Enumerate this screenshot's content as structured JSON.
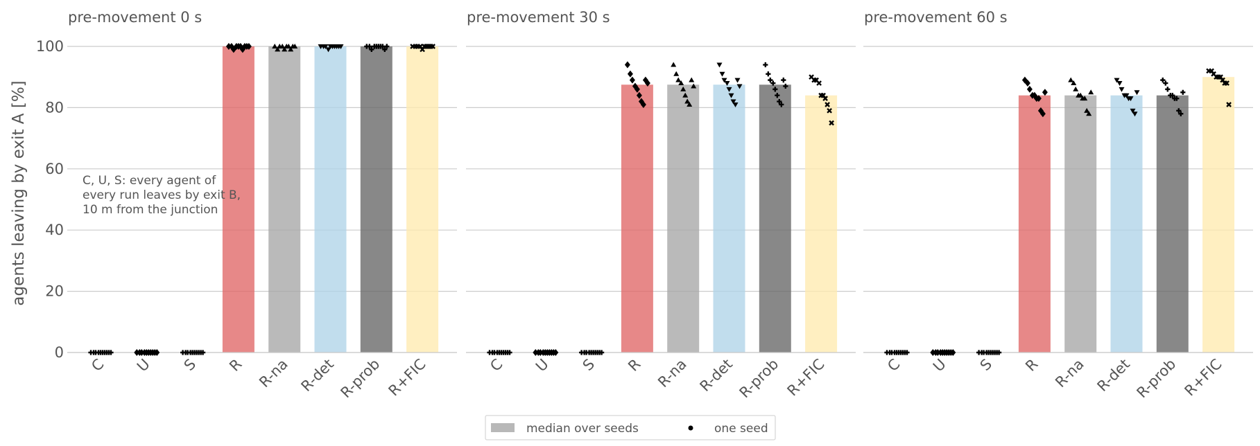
{
  "chart_data": {
    "type": "bar",
    "ylabel": "agents leaving by exit A [%]",
    "ylim": [
      0,
      100
    ],
    "yticks": [
      0,
      20,
      40,
      60,
      80,
      100
    ],
    "grid": "horizontal",
    "categories": [
      "C",
      "U",
      "S",
      "R",
      "R-na",
      "R-det",
      "R-prob",
      "R+FIC"
    ],
    "colors": [
      "#555555",
      "#555555",
      "#555555",
      "#e06666",
      "#a6a6a6",
      "#b0d4e8",
      "#666666",
      "#ffeab0"
    ],
    "markers": [
      "plus",
      "diamond",
      "plus",
      "diamond",
      "triangle-up",
      "triangle-down",
      "plus",
      "cross"
    ],
    "panels": [
      {
        "title": "pre-movement 0 s",
        "annotation": [
          "C, U, S: every agent of",
          "every run leaves by exit B,",
          "10 m from the junction"
        ],
        "medians": [
          0,
          0,
          0,
          100,
          100,
          100,
          100,
          100
        ],
        "seeds": [
          [
            0,
            0,
            0,
            0,
            0,
            0,
            0,
            0,
            0,
            0
          ],
          [
            0,
            0,
            0,
            0,
            0,
            0,
            0,
            0,
            0,
            0
          ],
          [
            0,
            0,
            0,
            0,
            0,
            0,
            0,
            0,
            0,
            0
          ],
          [
            100,
            100,
            99,
            100,
            100,
            100,
            99,
            100,
            100,
            100
          ],
          [
            100,
            99,
            100,
            100,
            99,
            100,
            100,
            99,
            100,
            100
          ],
          [
            100,
            100,
            100,
            99,
            100,
            100,
            100,
            100,
            100,
            100
          ],
          [
            100,
            100,
            99,
            100,
            100,
            100,
            100,
            100,
            99,
            100
          ],
          [
            100,
            100,
            100,
            100,
            99,
            100,
            100,
            100,
            100,
            100
          ]
        ]
      },
      {
        "title": "pre-movement 30 s",
        "medians": [
          0,
          0,
          0,
          87.5,
          87.5,
          87.5,
          87.5,
          84
        ],
        "seeds": [
          [
            0,
            0,
            0,
            0,
            0,
            0,
            0,
            0,
            0,
            0
          ],
          [
            0,
            0,
            0,
            0,
            0,
            0,
            0,
            0,
            0,
            0
          ],
          [
            0,
            0,
            0,
            0,
            0,
            0,
            0,
            0,
            0,
            0
          ],
          [
            94,
            91,
            89,
            87,
            86,
            84,
            82,
            81,
            89,
            88
          ],
          [
            94,
            91,
            89,
            88,
            86,
            84,
            82,
            81,
            89,
            87
          ],
          [
            94,
            91,
            89,
            88,
            86,
            84,
            82,
            81,
            89,
            87
          ],
          [
            94,
            91,
            89,
            88,
            86,
            84,
            82,
            81,
            89,
            87
          ],
          [
            90,
            89,
            89,
            88,
            84,
            84,
            83,
            81,
            79,
            75
          ]
        ]
      },
      {
        "title": "pre-movement 60 s",
        "medians": [
          0,
          0,
          0,
          84,
          84,
          84,
          84,
          90
        ],
        "seeds": [
          [
            0,
            0,
            0,
            0,
            0,
            0,
            0,
            0,
            0,
            0
          ],
          [
            0,
            0,
            0,
            0,
            0,
            0,
            0,
            0,
            0,
            0
          ],
          [
            0,
            0,
            0,
            0,
            0,
            0,
            0,
            0,
            0,
            0
          ],
          [
            89,
            88,
            86,
            84,
            84,
            83,
            83,
            79,
            78,
            85
          ],
          [
            89,
            88,
            86,
            84,
            84,
            83,
            83,
            79,
            78,
            85
          ],
          [
            89,
            88,
            86,
            84,
            84,
            83,
            83,
            79,
            78,
            85
          ],
          [
            89,
            88,
            86,
            84,
            84,
            83,
            83,
            79,
            78,
            85
          ],
          [
            92,
            92,
            91,
            90,
            90,
            90,
            89,
            88,
            88,
            81
          ]
        ]
      }
    ],
    "legend": {
      "placement": "bottom-center",
      "bar_label": "median over seeds",
      "point_label": "one seed"
    }
  }
}
